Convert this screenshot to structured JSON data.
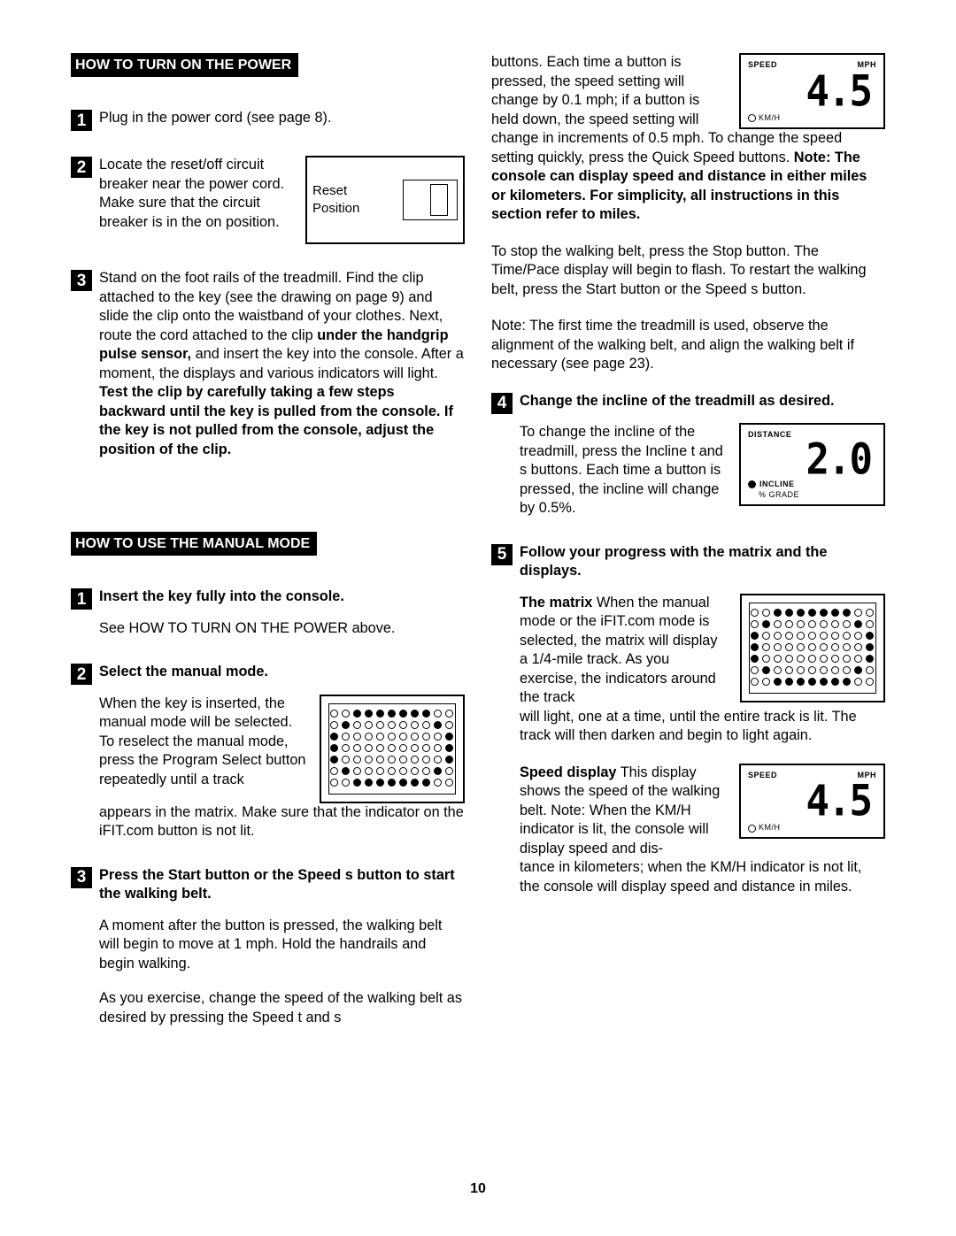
{
  "leftColumn": {
    "heading1": "HOW TO TURN ON THE POWER",
    "step1": {
      "num": "1",
      "text": "Plug in the power cord (see page 8)."
    },
    "step2": {
      "num": "2",
      "text": "Locate the reset/off circuit breaker near the power cord. Make sure that the circuit breaker is in the on position.",
      "figLabel": "Reset Position"
    },
    "step3": {
      "num": "3",
      "part1": "Stand on the foot rails of the treadmill. Find the clip attached to the key (see the drawing on page 9) and slide the clip onto the waistband of your clothes. Next, route the cord attached to the clip ",
      "bold1": "under the handgrip pulse sensor,",
      "part2": " and insert the key into the console. After a moment, the displays and various indicators will light. ",
      "bold2": "Test the clip by carefully taking a few steps backward until the key is pulled from the console. If the key is not pulled from the console, adjust the position of the clip."
    },
    "heading2": "HOW TO USE THE MANUAL MODE",
    "m1": {
      "num": "1",
      "title": "Insert the key fully into the console.",
      "body": "See HOW TO TURN ON THE POWER above."
    },
    "m2": {
      "num": "2",
      "title": "Select the manual mode.",
      "body1": "When the key is inserted, the manual mode will be selected. To reselect the manual mode, press the Program Select button repeatedly until a track",
      "body2": "appears in the matrix. Make sure that the indicator on the iFIT.com button is not lit."
    },
    "m3": {
      "num": "3",
      "title": "Press the Start button or the Speed s  button to start the walking belt.",
      "p1": "A moment after the button is pressed, the walking belt will begin to move at 1 mph. Hold the handrails and begin walking.",
      "p2": "As you exercise, change the speed of the walking belt as desired by pressing the Speed t  and s"
    }
  },
  "rightColumn": {
    "cont1": "buttons. Each time a button is pressed, the speed setting will change by 0.1 mph; if a button is held down, the speed setting will",
    "cont2_a": "change in increments of 0.5 mph. To change the speed setting quickly, press the Quick Speed buttons. ",
    "cont2_bold": "Note: The console can display speed and distance in either miles or kilometers. For simplicity, all instructions in this section refer to miles.",
    "p3": "To stop the walking belt, press the Stop button. The Time/Pace display will begin to flash. To restart the walking belt, press the Start button or the Speed s  button.",
    "p4": "Note: The first time the treadmill is used, observe the alignment of the walking belt, and align the walking belt if necessary (see page 23).",
    "r4": {
      "num": "4",
      "title": "Change the incline of the treadmill as desired.",
      "body": "To change the incline of the treadmill, press the Incline t  and s  buttons. Each time a button is pressed, the incline will change by 0.5%."
    },
    "r5": {
      "num": "5",
      "title": "Follow your progress with the matrix and the displays.",
      "matrixBold": "The matrix",
      "matrixBody1": " When the manual mode or the iFIT.com mode is selected, the matrix will display a 1/4-mile track. As you exercise, the indicators around the track",
      "matrixBody2": "will light, one at a time, until the entire track is lit. The track will then darken and begin to light again.",
      "speedBold": "Speed display",
      "speedBody1": " This display shows the speed of the walking belt. Note: When the KM/H indicator is lit, the console will display speed and dis-",
      "speedBody2": "tance in kilometers; when the KM/H indicator is not lit, the console will display speed and distance in miles."
    },
    "figures": {
      "speed": {
        "label1": "SPEED",
        "label2": "MPH",
        "value": "4.5",
        "kmh": "KM/H"
      },
      "distance": {
        "label": "DISTANCE",
        "value": "2.0",
        "incline": "INCLINE",
        "grade": "% GRADE"
      }
    }
  },
  "matrixPattern": [
    "00111111100",
    "01000000010",
    "10000000001",
    "10000000001",
    "10000000001",
    "01000000010",
    "00111111100"
  ],
  "pageNumber": "10"
}
